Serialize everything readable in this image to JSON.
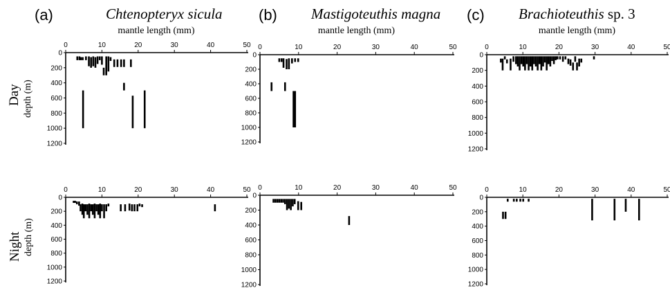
{
  "figure": {
    "panels": [
      {
        "letter": "(a)",
        "species": "Chtenopteryx sicula",
        "species_suffix": ""
      },
      {
        "letter": "(b)",
        "species": "Mastigoteuthis magna",
        "species_suffix": ""
      },
      {
        "letter": "(c)",
        "species": "Brachioteuthis",
        "species_suffix": " sp. 3"
      }
    ],
    "row_labels": [
      {
        "main": "Day",
        "sub": "depth (m)"
      },
      {
        "main": "Night",
        "sub": "depth (m)"
      }
    ]
  },
  "chart_data": [
    {
      "type": "range-bar",
      "panel": "a",
      "period": "Day",
      "xlabel": "mantle length (mm)",
      "ylabel": "depth (m)",
      "xlim": [
        0,
        50
      ],
      "ylim": [
        0,
        1200
      ],
      "x_ticks": [
        0,
        10,
        20,
        30,
        40,
        50
      ],
      "y_ticks": [
        0,
        200,
        400,
        600,
        800,
        1000,
        1200
      ],
      "bars": [
        {
          "x": 3.2,
          "y0": 50,
          "y1": 100
        },
        {
          "x": 3.8,
          "y0": 50,
          "y1": 100
        },
        {
          "x": 4.2,
          "y0": 60,
          "y1": 100
        },
        {
          "x": 4.7,
          "y0": 60,
          "y1": 100
        },
        {
          "x": 5.6,
          "y0": 50,
          "y1": 100
        },
        {
          "x": 6.4,
          "y0": 50,
          "y1": 180
        },
        {
          "x": 7.0,
          "y0": 60,
          "y1": 200
        },
        {
          "x": 7.6,
          "y0": 50,
          "y1": 180
        },
        {
          "x": 8.2,
          "y0": 60,
          "y1": 200
        },
        {
          "x": 8.8,
          "y0": 50,
          "y1": 150
        },
        {
          "x": 9.4,
          "y0": 50,
          "y1": 100
        },
        {
          "x": 10.0,
          "y0": 50,
          "y1": 160
        },
        {
          "x": 10.5,
          "y0": 200,
          "y1": 300
        },
        {
          "x": 11.2,
          "y0": 50,
          "y1": 300
        },
        {
          "x": 11.8,
          "y0": 50,
          "y1": 250
        },
        {
          "x": 12.4,
          "y0": 60,
          "y1": 110
        },
        {
          "x": 13.4,
          "y0": 90,
          "y1": 190
        },
        {
          "x": 14.3,
          "y0": 90,
          "y1": 190
        },
        {
          "x": 15.3,
          "y0": 90,
          "y1": 190
        },
        {
          "x": 16.1,
          "y0": 90,
          "y1": 190
        },
        {
          "x": 16.1,
          "y0": 400,
          "y1": 500
        },
        {
          "x": 18.0,
          "y0": 90,
          "y1": 190
        },
        {
          "x": 4.8,
          "y0": 500,
          "y1": 1000
        },
        {
          "x": 18.5,
          "y0": 570,
          "y1": 1000
        },
        {
          "x": 21.8,
          "y0": 500,
          "y1": 1000
        }
      ]
    },
    {
      "type": "range-bar",
      "panel": "b",
      "period": "Day",
      "xlabel": "mantle length (mm)",
      "ylabel": "depth (m)",
      "xlim": [
        0,
        50
      ],
      "ylim": [
        0,
        1200
      ],
      "x_ticks": [
        0,
        10,
        20,
        30,
        40,
        50
      ],
      "y_ticks": [
        0,
        200,
        400,
        600,
        800,
        1000,
        1200
      ],
      "bars": [
        {
          "x": 5.0,
          "y0": 50,
          "y1": 100
        },
        {
          "x": 5.6,
          "y0": 50,
          "y1": 100
        },
        {
          "x": 6.1,
          "y0": 50,
          "y1": 180
        },
        {
          "x": 6.9,
          "y0": 60,
          "y1": 200
        },
        {
          "x": 7.5,
          "y0": 50,
          "y1": 200
        },
        {
          "x": 8.3,
          "y0": 50,
          "y1": 120
        },
        {
          "x": 9.1,
          "y0": 50,
          "y1": 100
        },
        {
          "x": 9.9,
          "y0": 50,
          "y1": 100
        },
        {
          "x": 3.0,
          "y0": 380,
          "y1": 500
        },
        {
          "x": 6.5,
          "y0": 380,
          "y1": 500
        },
        {
          "x": 8.7,
          "y0": 500,
          "y1": 1000
        },
        {
          "x": 9.1,
          "y0": 500,
          "y1": 1000
        }
      ]
    },
    {
      "type": "range-bar",
      "panel": "c",
      "period": "Day",
      "xlabel": "mantle length (mm)",
      "ylabel": "depth (m)",
      "xlim": [
        0,
        50
      ],
      "ylim": [
        0,
        1200
      ],
      "x_ticks": [
        0,
        10,
        20,
        30,
        40,
        50
      ],
      "y_ticks": [
        0,
        200,
        400,
        600,
        800,
        1000,
        1200
      ],
      "bars": [
        {
          "x": 3.9,
          "y0": 50,
          "y1": 100
        },
        {
          "x": 4.4,
          "y0": 50,
          "y1": 200
        },
        {
          "x": 5.0,
          "y0": 20,
          "y1": 60
        },
        {
          "x": 5.6,
          "y0": 60,
          "y1": 110
        },
        {
          "x": 6.6,
          "y0": 50,
          "y1": 200
        },
        {
          "x": 7.4,
          "y0": 20,
          "y1": 90
        },
        {
          "x": 8.1,
          "y0": 20,
          "y1": 120
        },
        {
          "x": 8.6,
          "y0": 20,
          "y1": 150
        },
        {
          "x": 9.1,
          "y0": 20,
          "y1": 200
        },
        {
          "x": 9.6,
          "y0": 20,
          "y1": 120
        },
        {
          "x": 10.1,
          "y0": 20,
          "y1": 150
        },
        {
          "x": 10.6,
          "y0": 20,
          "y1": 200
        },
        {
          "x": 11.1,
          "y0": 20,
          "y1": 120
        },
        {
          "x": 11.6,
          "y0": 20,
          "y1": 200
        },
        {
          "x": 12.1,
          "y0": 20,
          "y1": 150
        },
        {
          "x": 12.6,
          "y0": 20,
          "y1": 200
        },
        {
          "x": 13.1,
          "y0": 20,
          "y1": 120
        },
        {
          "x": 13.6,
          "y0": 20,
          "y1": 150
        },
        {
          "x": 14.1,
          "y0": 20,
          "y1": 200
        },
        {
          "x": 14.6,
          "y0": 20,
          "y1": 120
        },
        {
          "x": 15.1,
          "y0": 20,
          "y1": 200
        },
        {
          "x": 15.6,
          "y0": 20,
          "y1": 150
        },
        {
          "x": 16.1,
          "y0": 20,
          "y1": 100
        },
        {
          "x": 16.6,
          "y0": 20,
          "y1": 200
        },
        {
          "x": 17.1,
          "y0": 20,
          "y1": 120
        },
        {
          "x": 17.6,
          "y0": 20,
          "y1": 150
        },
        {
          "x": 18.1,
          "y0": 20,
          "y1": 80
        },
        {
          "x": 18.6,
          "y0": 20,
          "y1": 120
        },
        {
          "x": 19.1,
          "y0": 20,
          "y1": 70
        },
        {
          "x": 19.6,
          "y0": 20,
          "y1": 60
        },
        {
          "x": 20.3,
          "y0": 20,
          "y1": 60
        },
        {
          "x": 21.1,
          "y0": 20,
          "y1": 90
        },
        {
          "x": 21.8,
          "y0": 20,
          "y1": 60
        },
        {
          "x": 22.6,
          "y0": 50,
          "y1": 120
        },
        {
          "x": 23.2,
          "y0": 60,
          "y1": 140
        },
        {
          "x": 23.9,
          "y0": 100,
          "y1": 200
        },
        {
          "x": 24.5,
          "y0": 20,
          "y1": 90
        },
        {
          "x": 25.0,
          "y0": 100,
          "y1": 200
        },
        {
          "x": 25.6,
          "y0": 50,
          "y1": 150
        },
        {
          "x": 26.2,
          "y0": 50,
          "y1": 100
        },
        {
          "x": 29.7,
          "y0": 20,
          "y1": 60
        }
      ]
    },
    {
      "type": "range-bar",
      "panel": "a",
      "period": "Night",
      "xlabel": "",
      "ylabel": "depth (m)",
      "xlim": [
        0,
        50
      ],
      "ylim": [
        0,
        1200
      ],
      "x_ticks": [
        0,
        10,
        20,
        30,
        40,
        50
      ],
      "y_ticks": [
        0,
        200,
        400,
        600,
        800,
        1000,
        1200
      ],
      "bars": [
        {
          "x": 2.2,
          "y0": 50,
          "y1": 80
        },
        {
          "x": 2.6,
          "y0": 50,
          "y1": 80
        },
        {
          "x": 3.1,
          "y0": 60,
          "y1": 100
        },
        {
          "x": 3.7,
          "y0": 60,
          "y1": 120
        },
        {
          "x": 4.1,
          "y0": 100,
          "y1": 200
        },
        {
          "x": 4.6,
          "y0": 90,
          "y1": 250
        },
        {
          "x": 5.0,
          "y0": 100,
          "y1": 300
        },
        {
          "x": 5.5,
          "y0": 100,
          "y1": 200
        },
        {
          "x": 6.0,
          "y0": 100,
          "y1": 250
        },
        {
          "x": 6.5,
          "y0": 90,
          "y1": 300
        },
        {
          "x": 7.0,
          "y0": 100,
          "y1": 200
        },
        {
          "x": 7.5,
          "y0": 100,
          "y1": 250
        },
        {
          "x": 8.0,
          "y0": 90,
          "y1": 300
        },
        {
          "x": 8.5,
          "y0": 100,
          "y1": 200
        },
        {
          "x": 9.0,
          "y0": 100,
          "y1": 250
        },
        {
          "x": 9.5,
          "y0": 90,
          "y1": 300
        },
        {
          "x": 10.0,
          "y0": 100,
          "y1": 200
        },
        {
          "x": 10.6,
          "y0": 100,
          "y1": 300
        },
        {
          "x": 11.2,
          "y0": 100,
          "y1": 200
        },
        {
          "x": 11.8,
          "y0": 90,
          "y1": 130
        },
        {
          "x": 15.2,
          "y0": 100,
          "y1": 200
        },
        {
          "x": 16.4,
          "y0": 100,
          "y1": 200
        },
        {
          "x": 17.6,
          "y0": 90,
          "y1": 190
        },
        {
          "x": 18.3,
          "y0": 100,
          "y1": 200
        },
        {
          "x": 19.0,
          "y0": 100,
          "y1": 200
        },
        {
          "x": 19.8,
          "y0": 100,
          "y1": 200
        },
        {
          "x": 20.4,
          "y0": 90,
          "y1": 130
        },
        {
          "x": 21.1,
          "y0": 100,
          "y1": 140
        },
        {
          "x": 41.2,
          "y0": 100,
          "y1": 200
        }
      ]
    },
    {
      "type": "range-bar",
      "panel": "b",
      "period": "Night",
      "xlabel": "",
      "ylabel": "depth (m)",
      "xlim": [
        0,
        50
      ],
      "ylim": [
        0,
        1200
      ],
      "x_ticks": [
        0,
        10,
        20,
        30,
        40,
        50
      ],
      "y_ticks": [
        0,
        200,
        400,
        600,
        800,
        1000,
        1200
      ],
      "bars": [
        {
          "x": 3.5,
          "y0": 50,
          "y1": 100
        },
        {
          "x": 4.0,
          "y0": 50,
          "y1": 100
        },
        {
          "x": 4.5,
          "y0": 50,
          "y1": 100
        },
        {
          "x": 5.0,
          "y0": 50,
          "y1": 100
        },
        {
          "x": 5.5,
          "y0": 50,
          "y1": 100
        },
        {
          "x": 6.0,
          "y0": 50,
          "y1": 100
        },
        {
          "x": 6.5,
          "y0": 50,
          "y1": 120
        },
        {
          "x": 7.0,
          "y0": 50,
          "y1": 200
        },
        {
          "x": 7.5,
          "y0": 50,
          "y1": 180
        },
        {
          "x": 8.0,
          "y0": 50,
          "y1": 200
        },
        {
          "x": 8.5,
          "y0": 50,
          "y1": 150
        },
        {
          "x": 9.0,
          "y0": 50,
          "y1": 120
        },
        {
          "x": 9.9,
          "y0": 80,
          "y1": 200
        },
        {
          "x": 10.7,
          "y0": 90,
          "y1": 200
        },
        {
          "x": 23.1,
          "y0": 280,
          "y1": 400
        }
      ]
    },
    {
      "type": "range-bar",
      "panel": "c",
      "period": "Night",
      "xlabel": "",
      "ylabel": "depth (m)",
      "xlim": [
        0,
        50
      ],
      "ylim": [
        0,
        1200
      ],
      "x_ticks": [
        0,
        10,
        20,
        30,
        40,
        50
      ],
      "y_ticks": [
        0,
        200,
        400,
        600,
        800,
        1000,
        1200
      ],
      "bars": [
        {
          "x": 4.5,
          "y0": 200,
          "y1": 300
        },
        {
          "x": 5.2,
          "y0": 200,
          "y1": 300
        },
        {
          "x": 5.8,
          "y0": 20,
          "y1": 60
        },
        {
          "x": 7.5,
          "y0": 20,
          "y1": 60
        },
        {
          "x": 8.3,
          "y0": 20,
          "y1": 60
        },
        {
          "x": 9.3,
          "y0": 20,
          "y1": 60
        },
        {
          "x": 10.1,
          "y0": 20,
          "y1": 60
        },
        {
          "x": 11.6,
          "y0": 20,
          "y1": 60
        },
        {
          "x": 29.2,
          "y0": 20,
          "y1": 320
        },
        {
          "x": 35.4,
          "y0": 20,
          "y1": 320
        },
        {
          "x": 38.5,
          "y0": 20,
          "y1": 200
        },
        {
          "x": 42.2,
          "y0": 20,
          "y1": 320
        }
      ]
    }
  ]
}
